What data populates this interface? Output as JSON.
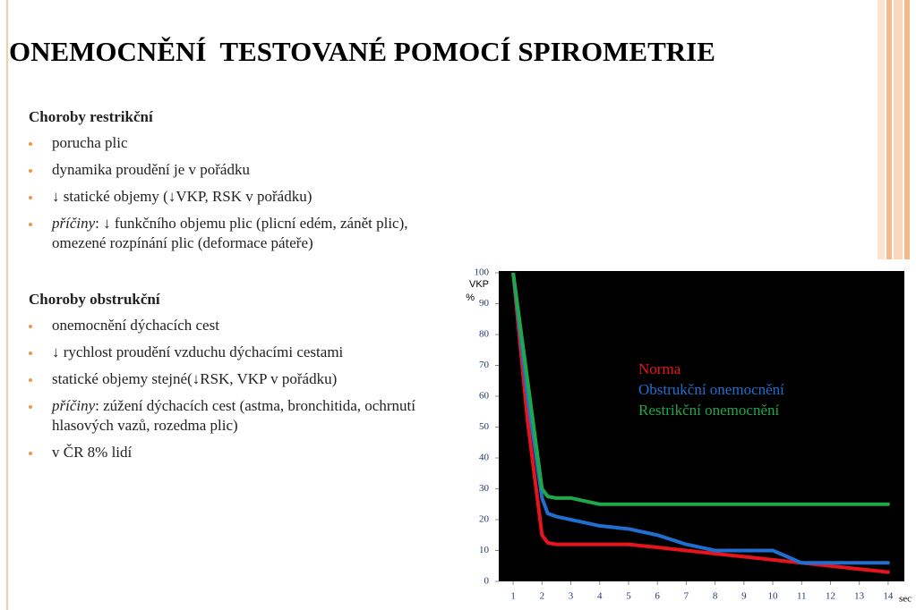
{
  "title": "ONEMOCNĚNÍ  TESTOVANÉ POMOCÍ SPIROMETRIE",
  "sections": [
    {
      "heading": "Choroby restrikční",
      "items": [
        {
          "text": "porucha plic"
        },
        {
          "text": "dynamika proudění je v pořádku"
        },
        {
          "text": "↓ statické objemy (↓VKP, RSK v pořádku)"
        },
        {
          "italic": "příčiny",
          "text": ": ↓ funkčního objemu plic (plicní edém, zánět plic), omezené rozpínání plic (deformace páteře)"
        }
      ]
    },
    {
      "heading": "Choroby obstrukční",
      "items": [
        {
          "text": "onemocnění dýchacích cest"
        },
        {
          "text": "↓ rychlost proudění vzduchu dýchacími cestami"
        },
        {
          "text": "statické objemy stejné(↓RSK, VKP v pořádku)"
        },
        {
          "italic": "příčiny",
          "text": ": zúžení dýchacích cest (astma, bronchitida, ochrnutí hlasových vazů, rozedma plic)"
        },
        {
          "text": "v ČR 8% lidí"
        }
      ]
    }
  ],
  "chart_data": {
    "type": "line",
    "ylabel": [
      "VKP",
      "%"
    ],
    "xlabel": "sec",
    "x": [
      1,
      1.5,
      2,
      2.2,
      2.5,
      3,
      3.5,
      4,
      5,
      6,
      7,
      8,
      9,
      10,
      10.5,
      11,
      12,
      13,
      14
    ],
    "series": [
      {
        "name": "Norma",
        "color": "#e8141c",
        "values": [
          100,
          52,
          15,
          12.5,
          12,
          12,
          12,
          12,
          12,
          11,
          10,
          9,
          8,
          7,
          6.5,
          6,
          5,
          4,
          3
        ]
      },
      {
        "name": "Obstrukční onemocnění",
        "color": "#1f6fd1",
        "values": [
          100,
          60,
          27,
          22,
          21,
          20,
          19,
          18,
          17,
          15,
          12,
          10,
          10,
          10,
          8,
          6,
          6,
          6,
          6
        ]
      },
      {
        "name": "Restrikční onemocnění",
        "color": "#1fa84a",
        "values": [
          100,
          65,
          30,
          27.5,
          27,
          27,
          26,
          25,
          25,
          25,
          25,
          25,
          25,
          25,
          25,
          25,
          25,
          25,
          25
        ]
      }
    ],
    "xlim": [
      0.5,
      14.5
    ],
    "xticks": [
      1,
      2,
      3,
      4,
      5,
      6,
      7,
      8,
      9,
      10,
      11,
      12,
      13,
      14
    ],
    "ylim": [
      0,
      100
    ],
    "yticks": [
      0,
      10,
      20,
      30,
      40,
      50,
      60,
      70,
      80,
      90,
      100
    ]
  }
}
